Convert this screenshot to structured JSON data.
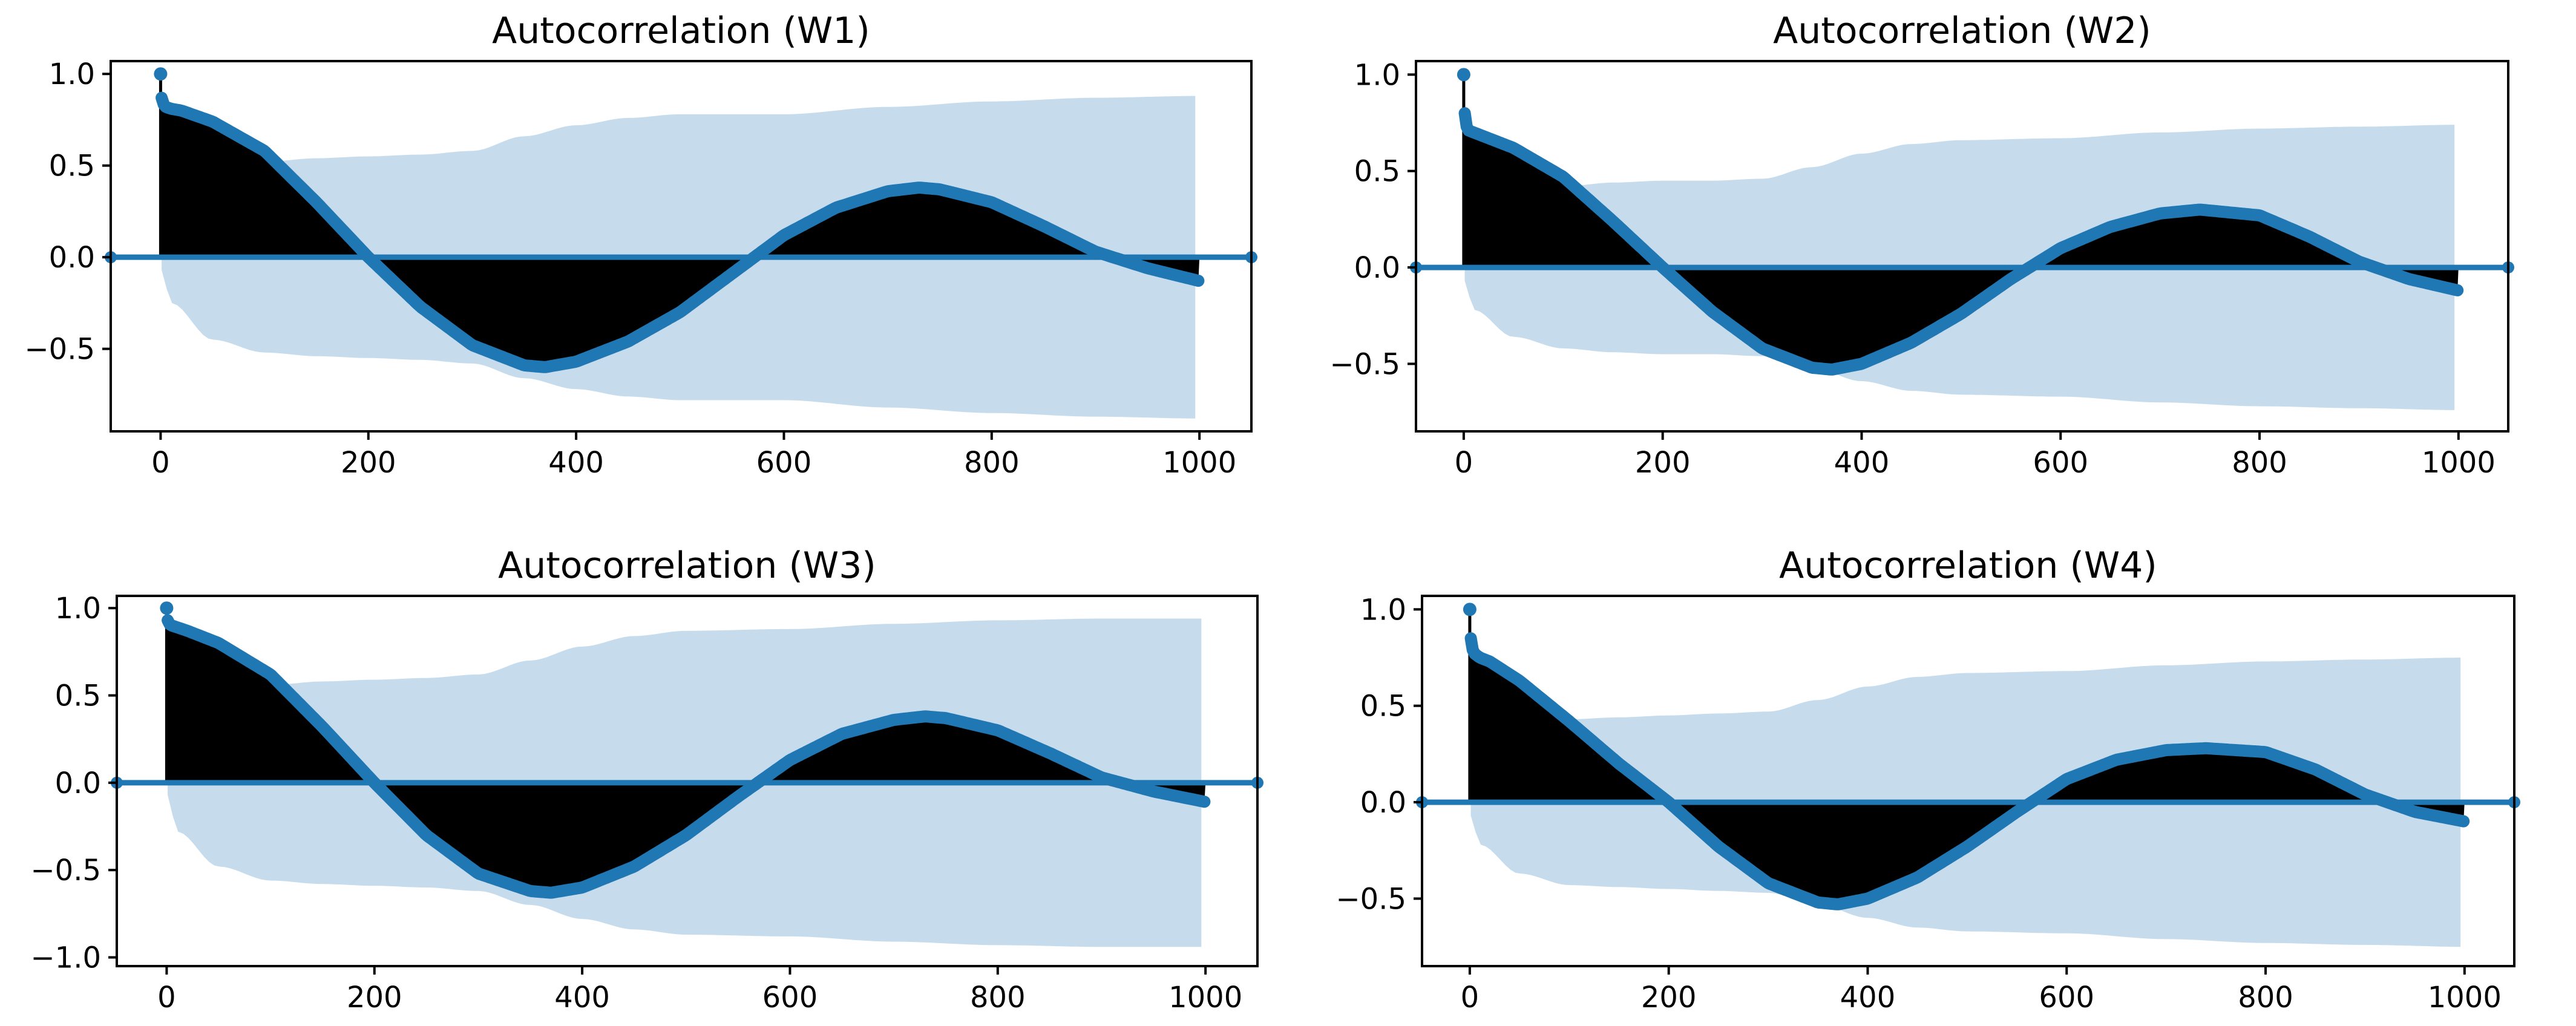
{
  "figure": {
    "colors": {
      "series": "#1f77b4",
      "confidence_band": "#c6dbec",
      "stem_fill": "#000000",
      "axes": "#000000"
    }
  },
  "chart_data": [
    {
      "type": "area",
      "title": "Autocorrelation (W1)",
      "xlabel": "",
      "ylabel": "",
      "xlim": [
        -48,
        1050
      ],
      "ylim": [
        -0.95,
        1.07
      ],
      "xticks": [
        0,
        200,
        400,
        600,
        800,
        1000
      ],
      "yticks": [
        -0.5,
        0.0,
        0.5,
        1.0
      ],
      "x": [
        0,
        1,
        2,
        5,
        10,
        20,
        50,
        100,
        150,
        200,
        250,
        300,
        350,
        370,
        400,
        450,
        500,
        550,
        600,
        650,
        700,
        730,
        750,
        800,
        850,
        900,
        950,
        1000
      ],
      "y": [
        1.0,
        0.87,
        0.84,
        0.82,
        0.81,
        0.8,
        0.74,
        0.58,
        0.3,
        0.0,
        -0.27,
        -0.48,
        -0.59,
        -0.6,
        -0.57,
        -0.46,
        -0.3,
        -0.09,
        0.12,
        0.27,
        0.36,
        0.38,
        0.37,
        0.3,
        0.17,
        0.03,
        -0.06,
        -0.13
      ],
      "confidence_band": {
        "x": [
          1,
          10,
          50,
          100,
          150,
          200,
          250,
          300,
          350,
          400,
          450,
          500,
          600,
          700,
          800,
          900,
          1000
        ],
        "upper": [
          0.07,
          0.25,
          0.45,
          0.52,
          0.54,
          0.55,
          0.56,
          0.58,
          0.66,
          0.72,
          0.76,
          0.78,
          0.78,
          0.82,
          0.85,
          0.87,
          0.88
        ],
        "lower": [
          -0.07,
          -0.25,
          -0.45,
          -0.52,
          -0.54,
          -0.55,
          -0.56,
          -0.58,
          -0.66,
          -0.72,
          -0.76,
          -0.78,
          -0.78,
          -0.82,
          -0.85,
          -0.87,
          -0.88
        ]
      }
    },
    {
      "type": "area",
      "title": "Autocorrelation (W2)",
      "xlabel": "",
      "ylabel": "",
      "xlim": [
        -48,
        1050
      ],
      "ylim": [
        -0.85,
        1.07
      ],
      "xticks": [
        0,
        200,
        400,
        600,
        800,
        1000
      ],
      "yticks": [
        -0.5,
        0.0,
        0.5,
        1.0
      ],
      "x": [
        0,
        1,
        2,
        5,
        10,
        20,
        50,
        100,
        150,
        200,
        250,
        300,
        350,
        370,
        400,
        450,
        500,
        550,
        600,
        650,
        700,
        740,
        800,
        850,
        900,
        950,
        1000
      ],
      "y": [
        1.0,
        0.8,
        0.74,
        0.71,
        0.7,
        0.68,
        0.62,
        0.47,
        0.24,
        0.0,
        -0.23,
        -0.42,
        -0.52,
        -0.53,
        -0.5,
        -0.39,
        -0.24,
        -0.06,
        0.1,
        0.21,
        0.28,
        0.3,
        0.27,
        0.16,
        0.03,
        -0.06,
        -0.12
      ],
      "confidence_band": {
        "x": [
          1,
          10,
          50,
          100,
          150,
          200,
          250,
          300,
          350,
          400,
          450,
          500,
          600,
          700,
          800,
          900,
          1000
        ],
        "upper": [
          0.07,
          0.22,
          0.36,
          0.42,
          0.44,
          0.45,
          0.45,
          0.46,
          0.52,
          0.59,
          0.64,
          0.66,
          0.67,
          0.7,
          0.72,
          0.73,
          0.74
        ],
        "lower": [
          -0.07,
          -0.22,
          -0.36,
          -0.42,
          -0.44,
          -0.45,
          -0.45,
          -0.46,
          -0.52,
          -0.59,
          -0.64,
          -0.66,
          -0.67,
          -0.7,
          -0.72,
          -0.73,
          -0.74
        ]
      }
    },
    {
      "type": "area",
      "title": "Autocorrelation (W3)",
      "xlabel": "",
      "ylabel": "",
      "xlim": [
        -48,
        1050
      ],
      "ylim": [
        -1.05,
        1.07
      ],
      "xticks": [
        0,
        200,
        400,
        600,
        800,
        1000
      ],
      "yticks": [
        -1.0,
        -0.5,
        0.0,
        0.5,
        1.0
      ],
      "x": [
        0,
        1,
        2,
        5,
        10,
        20,
        50,
        100,
        150,
        200,
        250,
        300,
        350,
        370,
        400,
        450,
        500,
        550,
        600,
        650,
        700,
        730,
        750,
        800,
        850,
        900,
        950,
        1000
      ],
      "y": [
        1.0,
        0.93,
        0.91,
        0.9,
        0.89,
        0.87,
        0.8,
        0.62,
        0.32,
        0.0,
        -0.3,
        -0.52,
        -0.62,
        -0.63,
        -0.6,
        -0.48,
        -0.3,
        -0.08,
        0.13,
        0.28,
        0.36,
        0.38,
        0.37,
        0.3,
        0.17,
        0.03,
        -0.05,
        -0.11
      ],
      "confidence_band": {
        "x": [
          1,
          10,
          50,
          100,
          150,
          200,
          250,
          300,
          350,
          400,
          450,
          500,
          600,
          700,
          800,
          900,
          1000
        ],
        "upper": [
          0.07,
          0.28,
          0.48,
          0.56,
          0.58,
          0.59,
          0.6,
          0.62,
          0.7,
          0.78,
          0.84,
          0.87,
          0.88,
          0.91,
          0.93,
          0.94,
          0.94
        ],
        "lower": [
          -0.07,
          -0.28,
          -0.48,
          -0.56,
          -0.58,
          -0.59,
          -0.6,
          -0.62,
          -0.7,
          -0.78,
          -0.84,
          -0.87,
          -0.88,
          -0.91,
          -0.93,
          -0.94,
          -0.94
        ]
      }
    },
    {
      "type": "area",
      "title": "Autocorrelation (W4)",
      "xlabel": "",
      "ylabel": "",
      "xlim": [
        -48,
        1050
      ],
      "ylim": [
        -0.85,
        1.07
      ],
      "xticks": [
        0,
        200,
        400,
        600,
        800,
        1000
      ],
      "yticks": [
        -0.5,
        0.0,
        0.5,
        1.0
      ],
      "x": [
        0,
        1,
        2,
        5,
        10,
        20,
        50,
        100,
        150,
        200,
        250,
        300,
        350,
        370,
        400,
        450,
        500,
        550,
        600,
        650,
        700,
        740,
        800,
        850,
        900,
        950,
        1000
      ],
      "y": [
        1.0,
        0.85,
        0.8,
        0.77,
        0.75,
        0.73,
        0.63,
        0.42,
        0.2,
        0.0,
        -0.23,
        -0.42,
        -0.52,
        -0.53,
        -0.5,
        -0.39,
        -0.23,
        -0.05,
        0.12,
        0.22,
        0.27,
        0.28,
        0.26,
        0.17,
        0.04,
        -0.05,
        -0.1
      ],
      "confidence_band": {
        "x": [
          1,
          10,
          50,
          100,
          150,
          200,
          250,
          300,
          350,
          400,
          450,
          500,
          600,
          700,
          800,
          900,
          1000
        ],
        "upper": [
          0.07,
          0.22,
          0.37,
          0.43,
          0.44,
          0.45,
          0.46,
          0.47,
          0.53,
          0.6,
          0.65,
          0.67,
          0.68,
          0.71,
          0.73,
          0.74,
          0.75
        ],
        "lower": [
          -0.07,
          -0.22,
          -0.37,
          -0.43,
          -0.44,
          -0.45,
          -0.46,
          -0.47,
          -0.53,
          -0.6,
          -0.65,
          -0.67,
          -0.68,
          -0.71,
          -0.73,
          -0.74,
          -0.75
        ]
      }
    }
  ]
}
